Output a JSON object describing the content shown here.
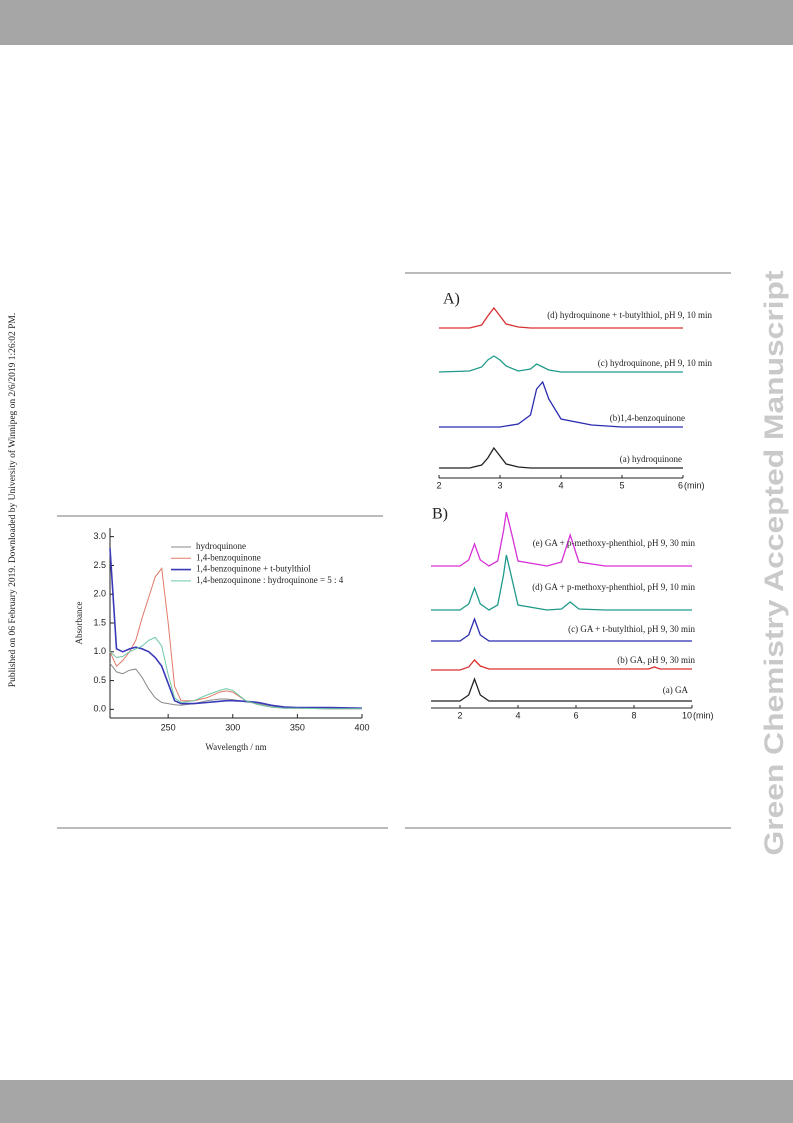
{
  "side_note": "Published on 06 February 2019. Downloaded by University of Winnipeg on 2/6/2019 1:26:02 PM.",
  "watermark": "Green Chemistry Accepted Manuscript",
  "chart_data": [
    {
      "type": "line",
      "x_label": "Wavelength / nm",
      "y_label": "Absorbance",
      "x": [
        205,
        210,
        215,
        220,
        225,
        230,
        235,
        240,
        245,
        250,
        255,
        260,
        270,
        280,
        290,
        295,
        300,
        310,
        320,
        330,
        340,
        350,
        375,
        400
      ],
      "xlim": [
        205,
        400
      ],
      "xticks": [
        250,
        300,
        350,
        400
      ],
      "ylim": [
        -0.15,
        3.15
      ],
      "yticks": [
        {
          "value": 0,
          "label": "0.0"
        },
        0.5,
        {
          "value": 1,
          "label": "1.0"
        },
        1.5,
        {
          "value": 2,
          "label": "2.0"
        },
        2.5,
        {
          "value": 3,
          "label": "3.0"
        }
      ],
      "series": [
        {
          "name": "hydroquinone",
          "color": "#8a8a8a",
          "values": [
            0.8,
            0.65,
            0.62,
            0.68,
            0.7,
            0.55,
            0.35,
            0.2,
            0.12,
            0.1,
            0.08,
            0.07,
            0.1,
            0.15,
            0.18,
            0.18,
            0.17,
            0.13,
            0.1,
            0.06,
            0.03,
            0.02,
            0.01,
            0.01
          ]
        },
        {
          "name": "1,4-benzoquinone",
          "color": "#e07a68",
          "values": [
            1.0,
            0.75,
            0.85,
            1.0,
            1.2,
            1.6,
            1.95,
            2.3,
            2.45,
            1.5,
            0.4,
            0.15,
            0.15,
            0.2,
            0.3,
            0.32,
            0.3,
            0.15,
            0.08,
            0.04,
            0.02,
            0.02,
            0.01,
            0.01
          ]
        },
        {
          "name": "1,4-benzoquinone + t-butylthiol",
          "color": "#3a3ab8",
          "values": [
            2.8,
            1.05,
            1.0,
            1.05,
            1.08,
            1.05,
            1.0,
            0.9,
            0.75,
            0.45,
            0.15,
            0.1,
            0.1,
            0.12,
            0.14,
            0.15,
            0.15,
            0.14,
            0.12,
            0.07,
            0.04,
            0.03,
            0.03,
            0.02
          ]
        },
        {
          "name": "1,4-benzoquinone : hydroquinone = 5 : 4",
          "color": "#6cc9a4",
          "values": [
            1.0,
            0.9,
            0.92,
            1.0,
            1.05,
            1.1,
            1.2,
            1.25,
            1.1,
            0.6,
            0.2,
            0.12,
            0.15,
            0.25,
            0.33,
            0.36,
            0.33,
            0.15,
            0.08,
            0.04,
            0.02,
            0.02,
            0.01,
            0.01
          ]
        }
      ]
    },
    {
      "type": "chromatogram",
      "panel": "A)",
      "x_unit": "(min)",
      "x": [
        2,
        2.5,
        2.7,
        2.8,
        2.9,
        3.0,
        3.1,
        3.3,
        3.5,
        3.6,
        3.7,
        3.8,
        4.0,
        4.5,
        5,
        6
      ],
      "xlim": [
        2,
        6
      ],
      "xticks": [
        2,
        3,
        4,
        5,
        6
      ],
      "series": [
        {
          "name": "(a) hydroquinone",
          "color": "#222222",
          "values": [
            0,
            0,
            3,
            10,
            20,
            12,
            4,
            1,
            0,
            0,
            0,
            0,
            0,
            0,
            0,
            0
          ]
        },
        {
          "name": "(b)1,4-benzoquinone",
          "color": "#2b2bb0",
          "values": [
            0,
            0,
            0,
            0,
            0,
            0,
            1,
            3,
            12,
            38,
            45,
            28,
            8,
            2,
            0,
            0
          ]
        },
        {
          "name": "(c) hydroquinone, pH 9, 10 min",
          "color": "#1f9a8a",
          "values": [
            0,
            1,
            5,
            12,
            16,
            12,
            6,
            1,
            3,
            8,
            5,
            2,
            0,
            0,
            0,
            0
          ]
        },
        {
          "name": "(d) hydroquinone + t-butylthiol, pH 9, 10 min",
          "color": "#d93030",
          "values": [
            0,
            0,
            3,
            12,
            20,
            12,
            4,
            1,
            0,
            0,
            0,
            0,
            0,
            0,
            0,
            0
          ]
        }
      ]
    },
    {
      "type": "chromatogram",
      "panel": "B)",
      "x_unit": "(min)",
      "x": [
        1,
        2,
        2.3,
        2.5,
        2.7,
        3,
        3.3,
        3.5,
        3.6,
        3.8,
        4,
        5,
        5.5,
        5.8,
        6.1,
        7,
        8.5,
        8.7,
        8.9,
        10
      ],
      "xlim": [
        1,
        10
      ],
      "xticks": [
        2,
        4,
        6,
        8,
        10
      ],
      "series": [
        {
          "name": "(a) GA",
          "color": "#222222",
          "values": [
            0,
            0,
            6,
            22,
            6,
            0,
            0,
            0,
            0,
            0,
            0,
            0,
            0,
            0,
            0,
            0,
            0,
            0,
            0,
            0
          ]
        },
        {
          "name": "(b) GA, pH 9, 30 min",
          "color": "#d93030",
          "values": [
            0,
            0,
            3,
            10,
            4,
            1,
            1,
            1,
            1,
            1,
            1,
            1,
            1,
            1,
            1,
            1,
            1,
            3,
            1,
            1
          ]
        },
        {
          "name": "(c) GA + t-butylthiol, pH 9, 30 min",
          "color": "#2b2bb0",
          "values": [
            0,
            0,
            6,
            22,
            6,
            0,
            0,
            0,
            0,
            0,
            0,
            0,
            0,
            0,
            0,
            0,
            0,
            0,
            0,
            0
          ]
        },
        {
          "name": "(d) GA + p-methoxy-phenthiol, pH 9, 10 min",
          "color": "#1f9a8a",
          "values": [
            0,
            0,
            6,
            22,
            6,
            0,
            5,
            35,
            55,
            30,
            5,
            0,
            1,
            8,
            1,
            0,
            0,
            0,
            0,
            0
          ]
        },
        {
          "name": "(e) GA + p-methoxy-phenthiol, pH 9, 30 min",
          "color": "#d630d6",
          "values": [
            0,
            0,
            6,
            22,
            6,
            0,
            5,
            35,
            54,
            30,
            5,
            0,
            4,
            31,
            4,
            0,
            0,
            0,
            0,
            0
          ]
        }
      ]
    }
  ]
}
